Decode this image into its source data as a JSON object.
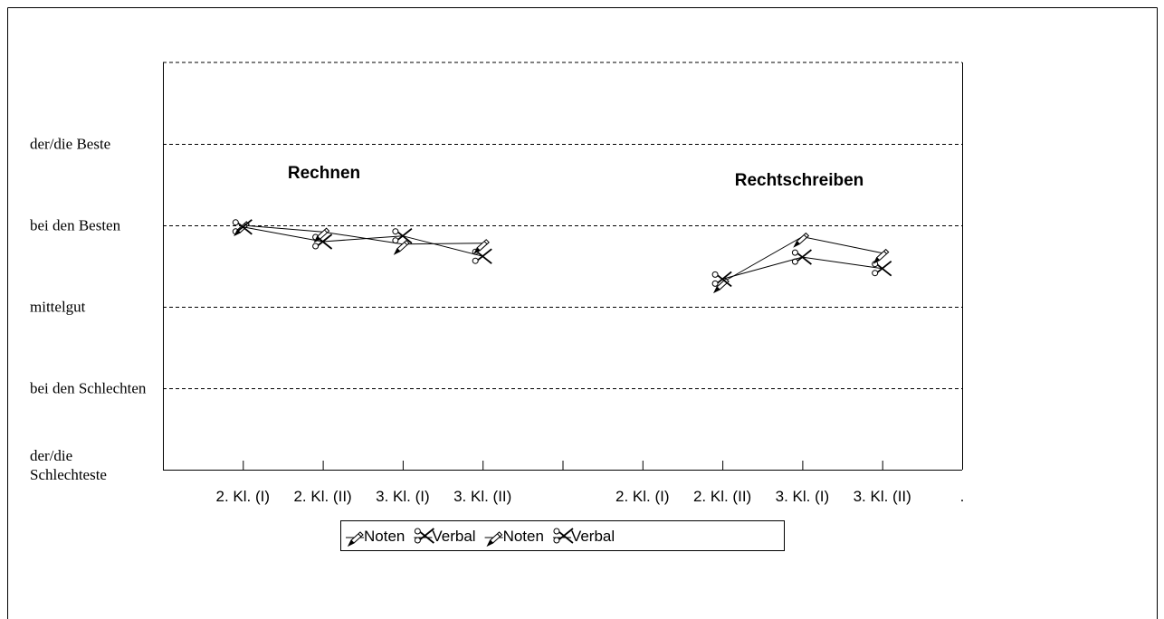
{
  "chart_data": {
    "type": "line",
    "categories": [
      "2. Kl. (I)",
      "2. Kl. (II)",
      "3. Kl. (I)",
      "3. Kl. (II)",
      null,
      "2. Kl. (I)",
      "2. Kl. (II)",
      "3. Kl. (I)",
      "3. Kl. (II)",
      "."
    ],
    "series": [
      {
        "name": "Noten",
        "color": "#000000",
        "marker": "pencil",
        "values": [
          4.0,
          3.92,
          3.77,
          3.78,
          null,
          null,
          null,
          null,
          null,
          null
        ]
      },
      {
        "name": "Verbal",
        "color": "#000000",
        "marker": "scissors",
        "values": [
          3.98,
          3.8,
          3.87,
          3.62,
          null,
          null,
          null,
          null,
          null,
          null
        ]
      },
      {
        "name": "Noten",
        "color": "#000000",
        "marker": "pencil",
        "values": [
          null,
          null,
          null,
          null,
          null,
          null,
          3.3,
          3.86,
          3.66,
          null
        ]
      },
      {
        "name": "Verbal",
        "color": "#000000",
        "marker": "scissors",
        "values": [
          null,
          null,
          null,
          null,
          null,
          null,
          3.34,
          3.61,
          3.47,
          null
        ]
      }
    ],
    "annotations": [
      {
        "text": "Rechnen"
      },
      {
        "text": "Rechtschreiben"
      }
    ],
    "ylim": [
      1,
      6
    ],
    "yticks": [
      {
        "value": 1,
        "label": "der/die Schlechteste"
      },
      {
        "value": 2,
        "label": "bei den Schlechten"
      },
      {
        "value": 3,
        "label": "mittelgut"
      },
      {
        "value": 4,
        "label": "bei den Besten"
      },
      {
        "value": 5,
        "label": "der/die Beste"
      }
    ],
    "grid": true
  }
}
